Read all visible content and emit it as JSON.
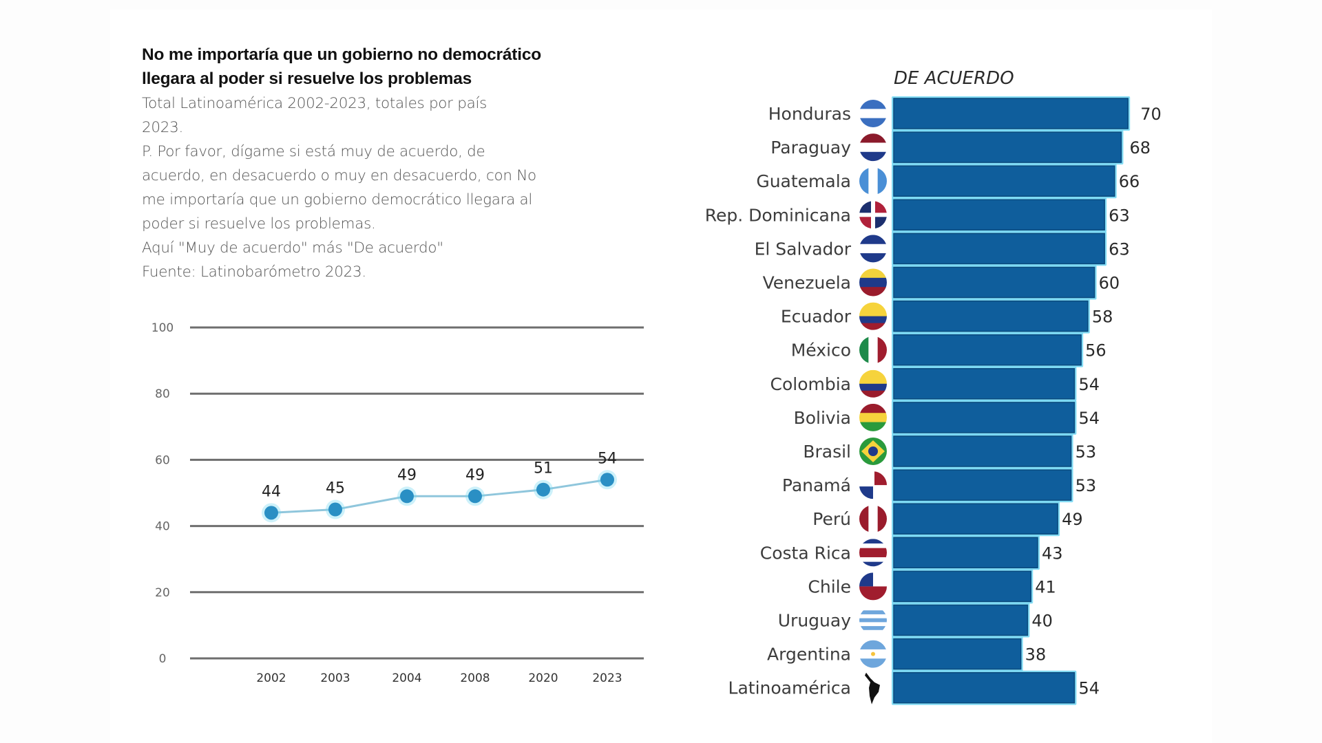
{
  "header": {
    "title_line1": "No me importaría que un gobierno no democrático",
    "title_line2": "llegara al poder si resuelve los problemas",
    "desc_lines": [
      "Total Latinoamérica 2002-2023, totales por país",
      "2023.",
      "P. Por favor, dígame si está muy de acuerdo, de",
      "acuerdo, en desacuerdo o muy en desacuerdo, con No",
      "me importaría que un gobierno democrático llegara al",
      "poder si resuelve los problemas.",
      "Aquí \"Muy de acuerdo\" más \"De acuerdo\"",
      "Fuente: Latinobarómetro 2023."
    ]
  },
  "colors": {
    "bar": "#0f5e9c",
    "bar_glow": "#6fd6f2",
    "line_point": "#2a8fc4",
    "line_stroke": "#8fc6dc",
    "grid": "#6e6e6e"
  },
  "chart_data": [
    {
      "type": "line",
      "title": "Total Latinoamérica 2002-2023",
      "xlabel": "",
      "ylabel": "",
      "x": [
        "2002",
        "2003",
        "2004",
        "2008",
        "2020",
        "2023"
      ],
      "series": [
        {
          "name": "Latinoamérica",
          "values": [
            44,
            45,
            49,
            49,
            51,
            54
          ]
        }
      ],
      "yticks": [
        0,
        20,
        40,
        60,
        80,
        100
      ],
      "ylim": [
        0,
        100
      ],
      "grid": true,
      "data_labels": true
    },
    {
      "type": "bar",
      "orientation": "horizontal",
      "title": "DE ACUERDO",
      "categories": [
        "Honduras",
        "Paraguay",
        "Guatemala",
        "Rep. Dominicana",
        "El Salvador",
        "Venezuela",
        "Ecuador",
        "México",
        "Colombia",
        "Bolivia",
        "Brasil",
        "Panamá",
        "Perú",
        "Costa Rica",
        "Chile",
        "Uruguay",
        "Argentina",
        "Latinoamérica"
      ],
      "values": [
        70,
        68,
        66,
        63,
        63,
        60,
        58,
        56,
        54,
        54,
        53,
        53,
        49,
        43,
        41,
        40,
        38,
        54
      ],
      "icons": [
        "flag-honduras",
        "flag-paraguay",
        "flag-guatemala",
        "flag-dominican-republic",
        "flag-el-salvador",
        "flag-venezuela",
        "flag-ecuador",
        "flag-mexico",
        "flag-colombia",
        "flag-bolivia",
        "flag-brazil",
        "flag-panama",
        "flag-peru",
        "flag-costa-rica",
        "flag-chile",
        "flag-uruguay",
        "flag-argentina",
        "latin-america-map"
      ],
      "xlim": [
        0,
        100
      ],
      "data_labels": true
    }
  ]
}
